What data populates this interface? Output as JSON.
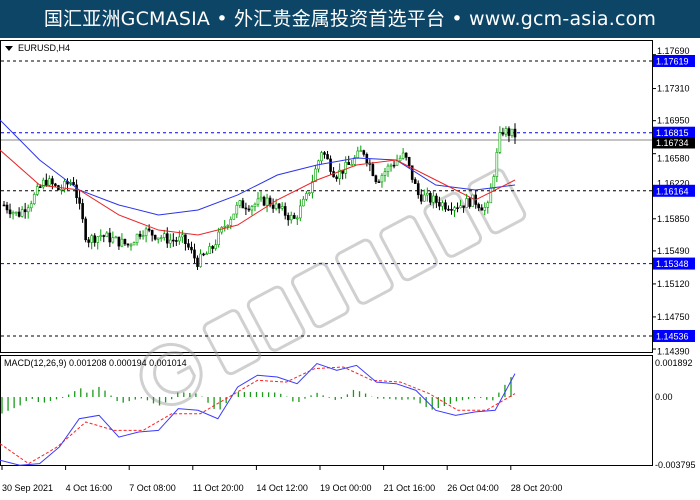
{
  "banner": {
    "text": "国汇亚洲GCMASIA • 外汇贵金属投资首选平台 • www.gcm-asia.com"
  },
  "watermark": {
    "text": "GCMASIA国汇亚洲",
    "subtext": "GLOBAL CAPITAL MARKETS"
  },
  "symbol": "EURUSD,H4",
  "colors": {
    "banner": "#0d4566",
    "fast_ma": "#e8262a",
    "slow_ma": "#2b34e6",
    "bull": "#00a000",
    "bear": "#000000",
    "level_label": "#0000ff",
    "macd_hist": "#1a9a1a",
    "macd_line": "#3a3aff",
    "signal": "#ff2020"
  },
  "chart_data": [
    {
      "type": "candlestick",
      "title": "EURUSD,H4",
      "ylim": [
        1.1435,
        1.1778
      ],
      "y_ticks": [
        "1.17690",
        "1.17310",
        "1.16950",
        "1.16580",
        "1.16220",
        "1.15850",
        "1.15490",
        "1.15120",
        "1.14750",
        "1.14390"
      ],
      "x_ticks": [
        "30 Sep 2021",
        "4 Oct 16:00",
        "7 Oct 08:00",
        "11 Oct 20:00",
        "14 Oct 12:00",
        "19 Oct 00:00",
        "21 Oct 16:00",
        "26 Oct 04:00",
        "28 Oct 20:00"
      ],
      "close_path": [
        1.16005,
        1.15893,
        1.16061,
        1.16285,
        1.16173,
        1.16285,
        1.15612,
        1.15668,
        1.15612,
        1.15556,
        1.15724,
        1.15668,
        1.15612,
        1.15612,
        1.15366,
        1.155,
        1.1578,
        1.16005,
        1.16005,
        1.16061,
        1.15949,
        1.15836,
        1.16117,
        1.16621,
        1.16341,
        1.16453,
        1.16621,
        1.16285,
        1.16453,
        1.16565,
        1.16117,
        1.16061,
        1.16005,
        1.16005,
        1.16061,
        1.15949,
        1.16845,
        1.16789
      ],
      "slow_ma": [
        1.16958,
        1.16509,
        1.16173,
        1.16005,
        1.15893,
        1.15949,
        1.16117,
        1.16341,
        1.16453,
        1.16532,
        1.16509,
        1.16229,
        1.16173,
        1.16229
      ],
      "fast_ma": [
        1.16621,
        1.16229,
        1.16173,
        1.15893,
        1.15724,
        1.15668,
        1.1578,
        1.16061,
        1.16285,
        1.16453,
        1.16509,
        1.16285,
        1.16061,
        1.16285
      ],
      "levels": [
        {
          "value": "1.17619",
          "style": "black-dashed"
        },
        {
          "value": "1.16815",
          "style": "blue-dashed"
        },
        {
          "value": "1.16164",
          "style": "black-dashed"
        },
        {
          "value": "1.15348",
          "style": "blue-dashed"
        },
        {
          "value": "1.14536",
          "style": "black-dashed"
        }
      ],
      "current_price": "1.16734"
    },
    {
      "type": "line",
      "title": "MACD(12,26,9) 0.001208 0.000194 0.001014",
      "ylim": [
        -0.003795,
        0.001892
      ],
      "y_ticks": [
        "0.001892",
        "0.00",
        "-0.003795"
      ],
      "macd": [
        -0.00352,
        -0.0038,
        -0.00371,
        -0.00278,
        -0.00121,
        -0.00102,
        -0.00223,
        -0.00195,
        -0.00186,
        -0.00065,
        -0.00074,
        -0.00121,
        0.00056,
        0.00121,
        0.00111,
        0.00074,
        0.00186,
        0.00148,
        0.00176,
        0.00083,
        0.00074,
        0.00037,
        -0.00074,
        -0.00102,
        -0.00083,
        -0.00074,
        0.0013
      ],
      "signal": [
        -0.0026,
        -0.00371,
        -0.00278,
        -0.00139,
        -0.00186,
        -0.00186,
        -0.00093,
        -0.00093,
        0,
        0.00093,
        0.00083,
        0.00158,
        0.00167,
        0.00093,
        0.00083,
        0.00019,
        -0.00074,
        -0.00074,
        0.00019
      ]
    }
  ]
}
